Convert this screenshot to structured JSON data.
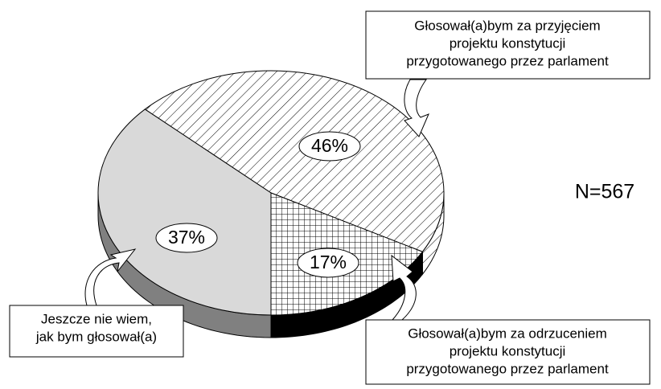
{
  "chart_data": {
    "type": "pie",
    "categories": [
      [
        "Głosował(a)bym za przyjęciem",
        "projektu konstytucji",
        "przygotowanego przez parlament"
      ],
      [
        "Głosował(a)bym za odrzuceniem",
        "projektu konstytucji",
        "przygotowanego przez parlament"
      ],
      [
        "Jeszcze nie wiem,",
        "jak bym głosował(a)"
      ]
    ],
    "values": [
      46,
      17,
      37
    ],
    "value_labels": [
      "46%",
      "17%",
      "37%"
    ],
    "annotations": [
      "N=567"
    ]
  }
}
